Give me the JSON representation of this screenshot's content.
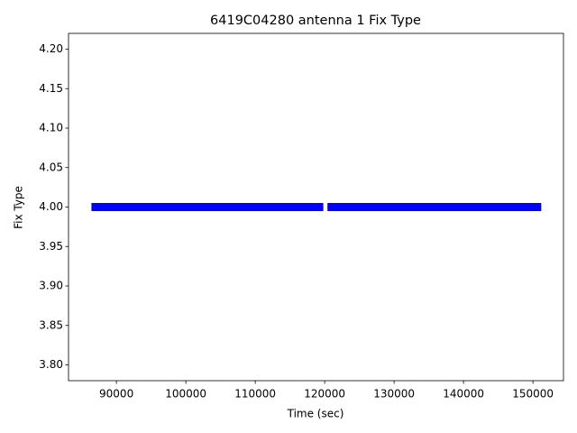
{
  "chart_data": {
    "type": "line",
    "title": "6419C04280 antenna 1 Fix Type",
    "x_label": "Time (sec)",
    "y_label": "Fix Type",
    "x": [
      86400,
      119800,
      120000,
      120400,
      151200
    ],
    "series": [
      {
        "color": "#0000ff",
        "values": [
          4,
          4,
          null,
          4,
          4
        ]
      }
    ],
    "xlim": [
      83100,
      154400
    ],
    "xticks": [
      90000,
      100000,
      110000,
      120000,
      130000,
      140000,
      150000
    ],
    "ylim": [
      3.78,
      4.22
    ],
    "yticks": [
      {
        "value": 3.8,
        "label": "3.80"
      },
      {
        "value": 3.85,
        "label": "3.85"
      },
      {
        "value": 3.9,
        "label": "3.90"
      },
      {
        "value": 3.95,
        "label": "3.95"
      },
      {
        "value": 4.0,
        "label": "4.00"
      },
      {
        "value": 4.05,
        "label": "4.05"
      },
      {
        "value": 4.1,
        "label": "4.10"
      },
      {
        "value": 4.15,
        "label": "4.15"
      },
      {
        "value": 4.2,
        "label": "4.20"
      }
    ]
  }
}
